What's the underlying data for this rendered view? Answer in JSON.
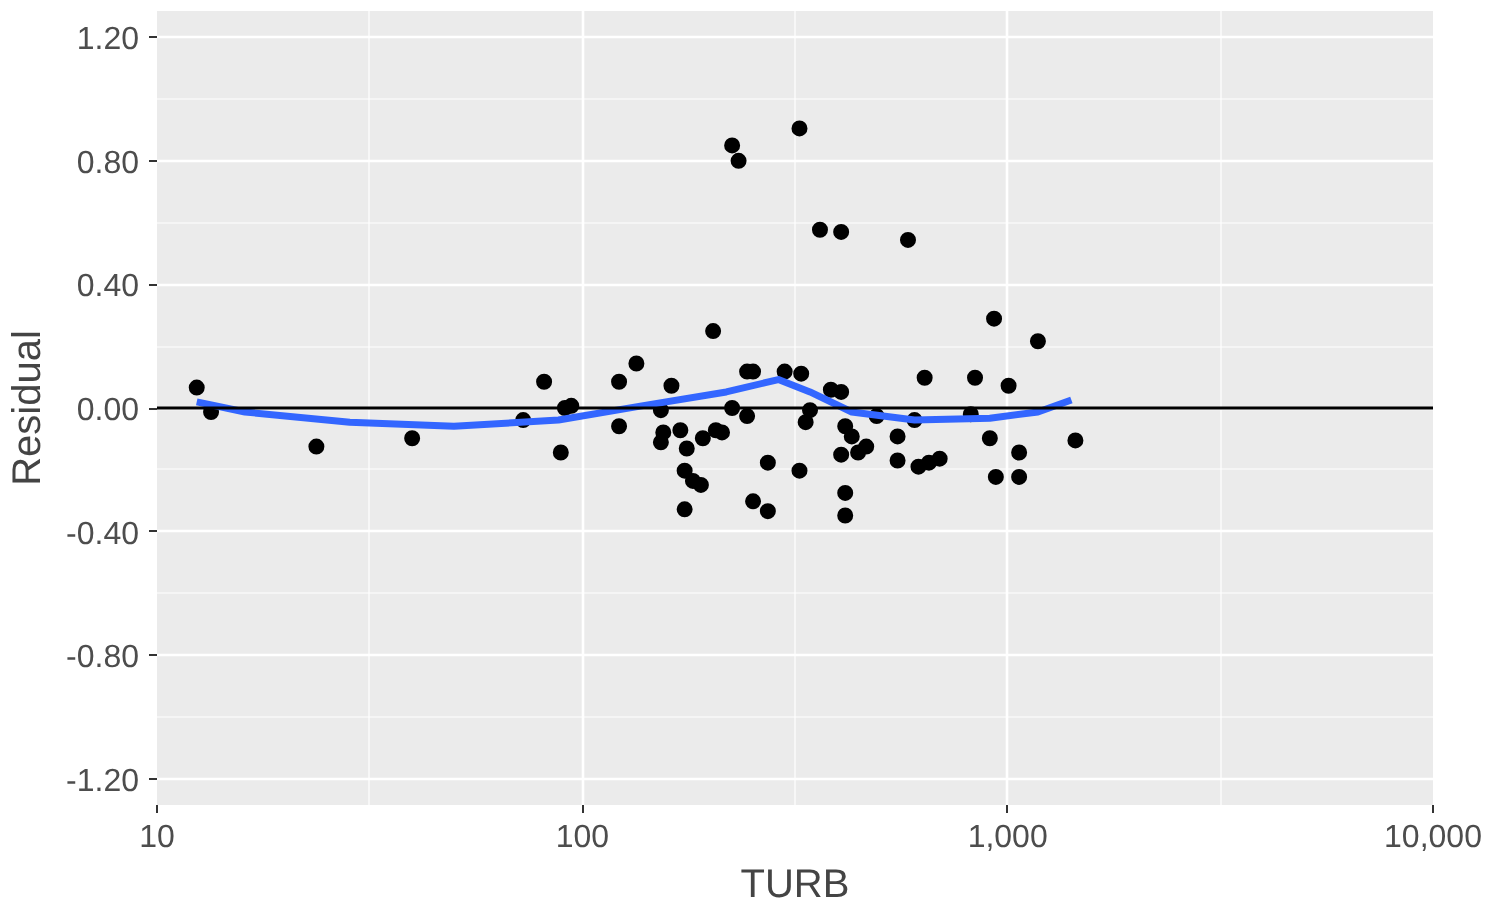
{
  "chart_data": {
    "type": "scatter",
    "xlabel": "TURB",
    "ylabel": "Residual",
    "log": "x",
    "grid": true,
    "marker": "circle",
    "xlim": [
      10,
      10000
    ],
    "ylim": [
      -1.285,
      1.285
    ],
    "xticks": [
      10,
      100,
      {
        "value": 1000,
        "label": "1,000"
      },
      {
        "value": 10000,
        "label": "10,000"
      }
    ],
    "yticks": [
      {
        "value": -1.2,
        "label": "-1.20"
      },
      {
        "value": -0.8,
        "label": "-0.80"
      },
      {
        "value": -0.4,
        "label": "-0.40"
      },
      {
        "value": 0,
        "label": "0.00"
      },
      {
        "value": 0.4,
        "label": "0.40"
      },
      {
        "value": 0.8,
        "label": "0.80"
      },
      {
        "value": 1.2,
        "label": "1.20"
      }
    ],
    "ref_lines": [
      {
        "axis": "y",
        "value": 0,
        "color": "#000000"
      }
    ],
    "series": [
      {
        "color": "#000000",
        "x": [
          12.4,
          13.4,
          23.7,
          39.8,
          72.6,
          81.3,
          89.0,
          91.0,
          94.2,
          122,
          134,
          122,
          162,
          153,
          155,
          153,
          170,
          176,
          174,
          182,
          190,
          174,
          192,
          206,
          213,
          203,
          225,
          233,
          244,
          252,
          244,
          225,
          273,
          252,
          273,
          324,
          299,
          327,
          324,
          343,
          335,
          362,
          406,
          384,
          406,
          415,
          430,
          406,
          445,
          465,
          415,
          415,
          492,
          551,
          551,
          617,
          653,
          692,
          638,
          583,
          604,
          838,
          819,
          908,
          938,
          929,
          1005,
          1064,
          1064,
          1178,
          1443
        ],
        "values": [
          0.066,
          -0.013,
          -0.125,
          -0.098,
          -0.039,
          0.085,
          -0.144,
          0,
          0.007,
          0.085,
          0.144,
          -0.059,
          0.072,
          -0.007,
          -0.079,
          -0.111,
          -0.072,
          -0.131,
          -0.203,
          -0.236,
          -0.249,
          -0.328,
          -0.098,
          -0.072,
          -0.079,
          0.249,
          0.85,
          0.8,
          0.118,
          0.118,
          -0.026,
          0,
          -0.177,
          -0.302,
          -0.334,
          0.905,
          0.118,
          0.111,
          -0.203,
          -0.007,
          -0.046,
          0.577,
          0.57,
          0.059,
          0.052,
          -0.059,
          -0.092,
          -0.151,
          -0.144,
          -0.125,
          -0.275,
          -0.348,
          -0.026,
          -0.092,
          -0.17,
          -0.19,
          -0.177,
          -0.164,
          0.098,
          0.544,
          -0.039,
          0.098,
          -0.02,
          -0.098,
          -0.223,
          0.289,
          0.072,
          -0.144,
          -0.223,
          0.216,
          -0.105
        ]
      },
      {
        "type": "line",
        "color": "#3366ff",
        "marker": "none",
        "x": [
          12.4,
          16.1,
          28.4,
          49.9,
          87.9,
          138,
          218,
          289,
          343,
          430,
          604,
          908,
          1178,
          1412
        ],
        "values": [
          0.02,
          -0.013,
          -0.046,
          -0.059,
          -0.039,
          0.007,
          0.052,
          0.092,
          0.052,
          -0.013,
          -0.039,
          -0.033,
          -0.013,
          0.026
        ]
      }
    ]
  }
}
